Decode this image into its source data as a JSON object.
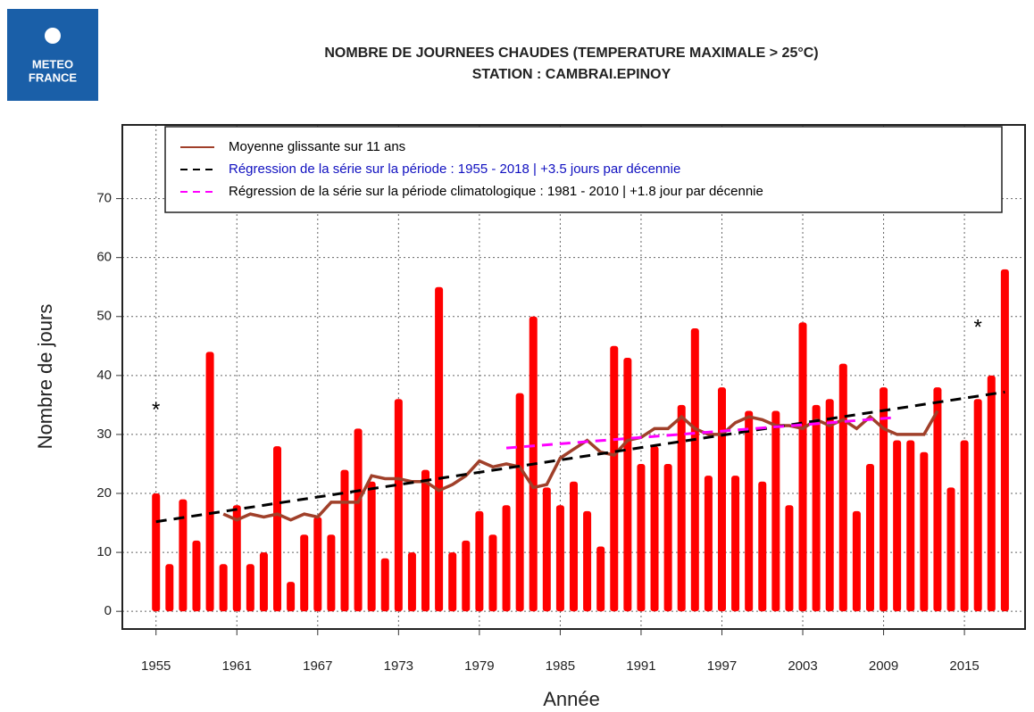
{
  "logo": {
    "line1": "METEO",
    "line2": "FRANCE"
  },
  "chart_data": {
    "type": "bar",
    "title": "NOMBRE DE JOURNEES CHAUDES (TEMPERATURE MAXIMALE > 25°C)",
    "subtitle": "STATION : CAMBRAI.EPINOY",
    "x_label": "Année",
    "y_label": "Nombre de jours",
    "x": [
      1955,
      1956,
      1957,
      1958,
      1959,
      1960,
      1961,
      1962,
      1963,
      1964,
      1965,
      1966,
      1967,
      1968,
      1969,
      1970,
      1971,
      1972,
      1973,
      1974,
      1975,
      1976,
      1977,
      1978,
      1979,
      1980,
      1981,
      1982,
      1983,
      1984,
      1985,
      1986,
      1987,
      1988,
      1989,
      1990,
      1991,
      1992,
      1993,
      1994,
      1995,
      1996,
      1997,
      1998,
      1999,
      2000,
      2001,
      2002,
      2003,
      2004,
      2005,
      2006,
      2007,
      2008,
      2009,
      2010,
      2011,
      2012,
      2013,
      2014,
      2015,
      2016,
      2017,
      2018
    ],
    "values": [
      20,
      8,
      19,
      12,
      44,
      8,
      18,
      8,
      10,
      28,
      5,
      13,
      16,
      13,
      24,
      31,
      22,
      9,
      36,
      10,
      24,
      55,
      10,
      12,
      17,
      13,
      18,
      37,
      50,
      21,
      18,
      22,
      17,
      11,
      45,
      43,
      25,
      28,
      25,
      35,
      48,
      23,
      38,
      23,
      34,
      22,
      34,
      18,
      49,
      35,
      36,
      42,
      17,
      25,
      38,
      29,
      29,
      27,
      38,
      21,
      29,
      36,
      40,
      58
    ],
    "color": "#ff0000",
    "series": [
      {
        "name": "Moyenne glissante sur 11 ans",
        "color": "#a0402a",
        "dash": false,
        "text_color": "#000000",
        "x": [
          1960,
          1961,
          1962,
          1963,
          1964,
          1965,
          1966,
          1967,
          1968,
          1969,
          1970,
          1971,
          1972,
          1973,
          1974,
          1975,
          1976,
          1977,
          1978,
          1979,
          1980,
          1981,
          1982,
          1983,
          1984,
          1985,
          1986,
          1987,
          1988,
          1989,
          1990,
          1991,
          1992,
          1993,
          1994,
          1995,
          1996,
          1997,
          1998,
          1999,
          2000,
          2001,
          2002,
          2003,
          2004,
          2005,
          2006,
          2007,
          2008,
          2009,
          2010,
          2011,
          2012,
          2013
        ],
        "values": [
          16.5,
          15.5,
          16.5,
          16,
          16.5,
          15.5,
          16.5,
          16,
          18.5,
          18.5,
          18.5,
          23,
          22.5,
          22.5,
          22,
          22,
          20.5,
          21.5,
          23,
          25.5,
          24.5,
          25,
          24.5,
          21,
          21.5,
          26,
          27.5,
          29,
          27,
          26.5,
          29,
          29.5,
          31,
          31,
          33,
          31,
          30,
          30,
          32,
          33,
          32.5,
          31.5,
          31.5,
          31,
          32.5,
          31.5,
          32.5,
          31,
          33,
          31,
          30,
          30,
          30,
          34
        ]
      },
      {
        "name": "Régression de la série sur la période : 1955 - 2018 | +3.5 jours par décennie",
        "color": "#000000",
        "dash": true,
        "text_color": "#1010c0",
        "x": [
          1955,
          2018
        ],
        "values": [
          15.2,
          37.2
        ]
      },
      {
        "name": "Régression de la série sur la période climatologique : 1981 - 2010 | +1.8 jour par décennie",
        "color": "#ff00ff",
        "dash": true,
        "text_color": "#000000",
        "x": [
          1981,
          2010
        ],
        "values": [
          27.7,
          32.9
        ]
      }
    ],
    "annotations": [
      {
        "text": "*",
        "x": 1955,
        "y": 34
      },
      {
        "text": "*",
        "x": 2016,
        "y": 48
      }
    ],
    "xlim": [
      1952.5,
      2019.5
    ],
    "xticks": [
      1955,
      1961,
      1967,
      1973,
      1979,
      1985,
      1991,
      1997,
      2003,
      2009,
      2015
    ],
    "ylim": [
      -3,
      82.5
    ],
    "yticks": [
      0,
      10,
      20,
      30,
      40,
      50,
      60,
      70
    ],
    "grid": true
  }
}
